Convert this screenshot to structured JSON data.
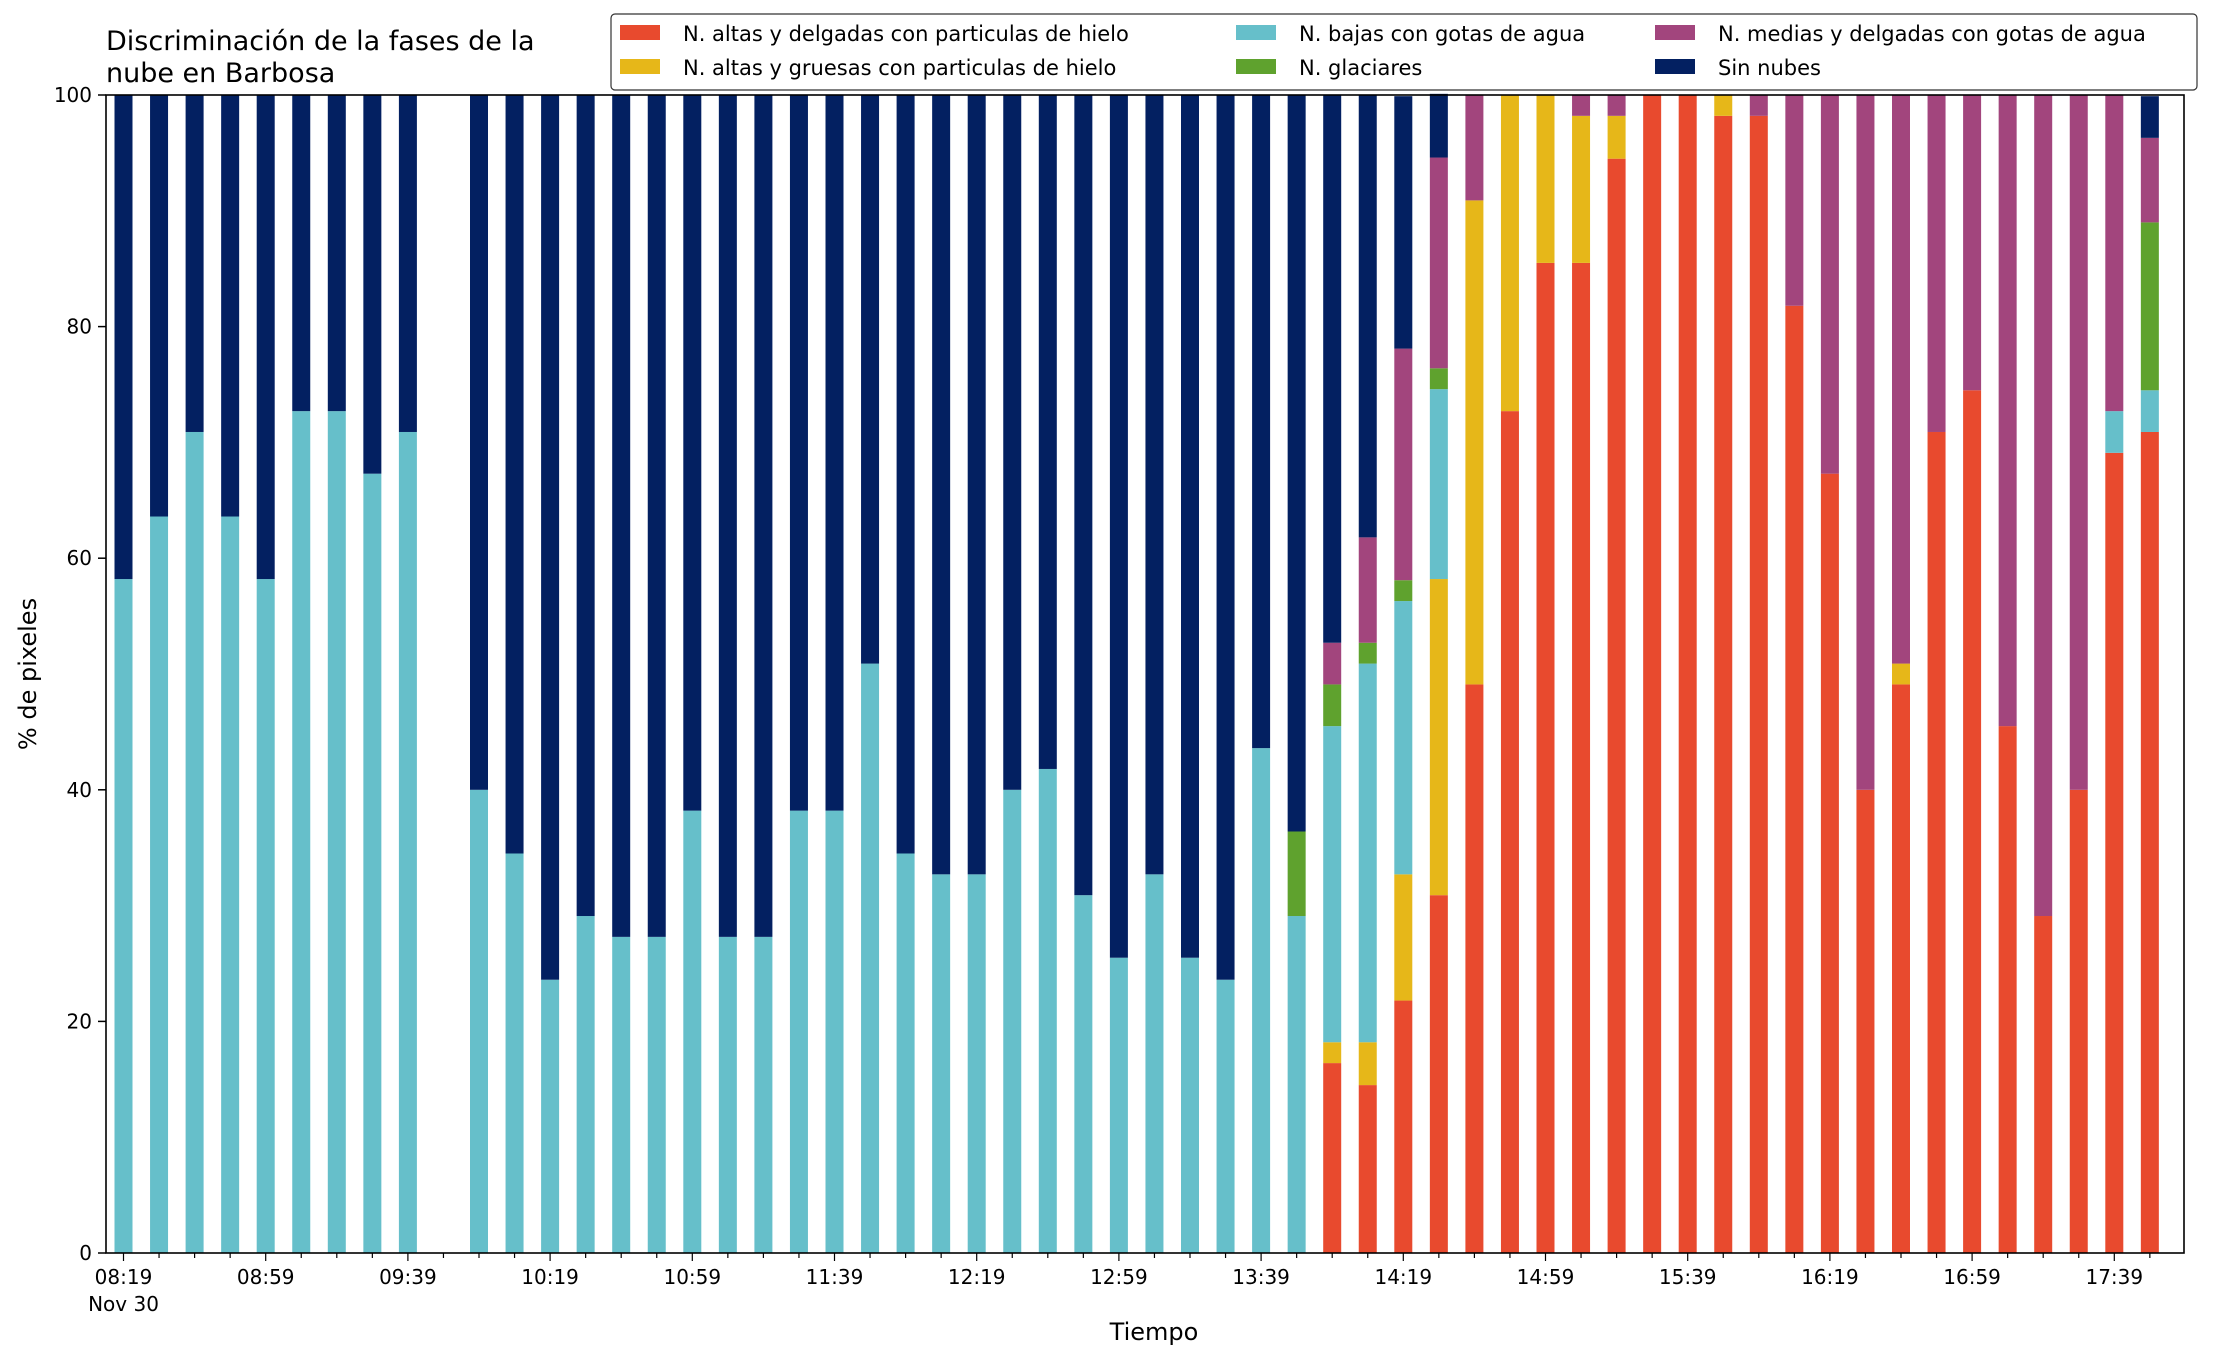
{
  "chart_data": {
    "type": "bar",
    "stacked": true,
    "title": "Discriminación de la fases de la\nnube en Barbosa",
    "xlabel": "Tiempo",
    "ylabel": "% de pixeles",
    "ylim": [
      0,
      100
    ],
    "yticks": [
      0,
      20,
      40,
      60,
      80,
      100
    ],
    "grid": false,
    "legend_position": "top-right",
    "legend_columns": 3,
    "x_start": "08:19",
    "x_step_minutes": 10,
    "x_tick_labels": [
      "08:19",
      "08:59",
      "09:39",
      "10:19",
      "10:59",
      "11:39",
      "12:19",
      "12:59",
      "13:39",
      "14:19",
      "14:59",
      "15:39",
      "16:19",
      "16:59",
      "17:39"
    ],
    "x_tick_sublabel": "Nov 30",
    "categories": [
      "08:19",
      "08:29",
      "08:39",
      "08:49",
      "08:59",
      "09:09",
      "09:19",
      "09:29",
      "09:39",
      "09:49",
      "09:59",
      "10:09",
      "10:19",
      "10:29",
      "10:39",
      "10:49",
      "10:59",
      "11:09",
      "11:19",
      "11:29",
      "11:39",
      "11:49",
      "11:59",
      "12:09",
      "12:19",
      "12:29",
      "12:39",
      "12:49",
      "12:59",
      "13:09",
      "13:19",
      "13:29",
      "13:39",
      "13:49",
      "13:59",
      "14:09",
      "14:19",
      "14:29",
      "14:39",
      "14:49",
      "14:59",
      "15:09",
      "15:19",
      "15:29",
      "15:39",
      "15:49",
      "15:59",
      "16:09",
      "16:19",
      "16:29",
      "16:39",
      "16:49",
      "16:59",
      "17:09",
      "17:19",
      "17:29",
      "17:39",
      "17:49"
    ],
    "series": [
      {
        "name": "N. altas y delgadas con particulas de hielo",
        "color": "#e84a2e",
        "values": [
          0,
          0,
          0,
          0,
          0,
          0,
          0,
          0,
          0,
          null,
          0,
          0,
          0,
          0,
          0,
          0,
          0,
          0,
          0,
          0,
          0,
          0,
          0,
          0,
          0,
          0,
          0,
          0,
          0,
          0,
          0,
          0,
          0,
          0,
          16.4,
          14.5,
          21.8,
          30.9,
          49.1,
          72.7,
          85.5,
          85.5,
          94.5,
          100,
          100,
          98.2,
          98.2,
          81.8,
          67.3,
          40,
          49.1,
          70.9,
          74.5,
          45.5,
          29.1,
          40,
          69.1,
          70.9
        ]
      },
      {
        "name": "N. altas y gruesas con particulas de hielo",
        "color": "#e6b719",
        "values": [
          0,
          0,
          0,
          0,
          0,
          0,
          0,
          0,
          0,
          null,
          0,
          0,
          0,
          0,
          0,
          0,
          0,
          0,
          0,
          0,
          0,
          0,
          0,
          0,
          0,
          0,
          0,
          0,
          0,
          0,
          0,
          0,
          0,
          0,
          1.8,
          3.7,
          10.9,
          27.3,
          41.8,
          27.3,
          14.5,
          12.7,
          3.7,
          0,
          0,
          1.8,
          0,
          0,
          0,
          0,
          1.8,
          0,
          0,
          0,
          0,
          0,
          0,
          0
        ]
      },
      {
        "name": "N. bajas con gotas de agua",
        "color": "#66bfca",
        "values": [
          58.2,
          63.6,
          70.9,
          63.6,
          58.2,
          72.7,
          72.7,
          67.3,
          70.9,
          null,
          40,
          34.5,
          23.6,
          29.1,
          27.3,
          27.3,
          38.2,
          27.3,
          27.3,
          38.2,
          38.2,
          50.9,
          34.5,
          32.7,
          32.7,
          40,
          41.8,
          30.9,
          25.5,
          32.7,
          25.5,
          23.6,
          43.6,
          29.1,
          27.3,
          32.7,
          23.6,
          16.4,
          0,
          0,
          0,
          0,
          0,
          0,
          0,
          0,
          0,
          0,
          0,
          0,
          0,
          0,
          0,
          0,
          0,
          0,
          3.6,
          3.6
        ]
      },
      {
        "name": "N. glaciares",
        "color": "#5fa22e",
        "values": [
          0,
          0,
          0,
          0,
          0,
          0,
          0,
          0,
          0,
          null,
          0,
          0,
          0,
          0,
          0,
          0,
          0,
          0,
          0,
          0,
          0,
          0,
          0,
          0,
          0,
          0,
          0,
          0,
          0,
          0,
          0,
          0,
          0,
          7.3,
          3.6,
          1.8,
          1.8,
          1.8,
          0,
          0,
          0,
          0,
          0,
          0,
          0,
          0,
          0,
          0,
          0,
          0,
          0,
          0,
          0,
          0,
          0,
          0,
          0,
          14.5
        ]
      },
      {
        "name": "N. medias y delgadas con gotas de agua",
        "color": "#a2457d",
        "values": [
          0,
          0,
          0,
          0,
          0,
          0,
          0,
          0,
          0,
          null,
          0,
          0,
          0,
          0,
          0,
          0,
          0,
          0,
          0,
          0,
          0,
          0,
          0,
          0,
          0,
          0,
          0,
          0,
          0,
          0,
          0,
          0,
          0,
          0,
          3.6,
          9.1,
          20,
          18.2,
          9.1,
          0,
          0,
          1.8,
          1.8,
          0,
          0,
          0,
          1.8,
          18.2,
          32.7,
          60,
          49.1,
          29.1,
          25.5,
          54.5,
          70.9,
          60,
          27.3,
          7.3
        ]
      },
      {
        "name": "Sin nubes",
        "color": "#032061",
        "values": [
          41.8,
          36.4,
          29.1,
          36.4,
          41.8,
          27.3,
          27.3,
          32.7,
          29.1,
          null,
          60,
          65.5,
          76.4,
          70.9,
          72.7,
          72.7,
          61.8,
          72.7,
          72.7,
          61.8,
          61.8,
          49.1,
          65.5,
          67.3,
          67.3,
          60,
          58.2,
          69.1,
          74.5,
          67.3,
          74.5,
          76.4,
          56.4,
          63.6,
          47.3,
          38.2,
          21.8,
          5.5,
          0,
          0,
          0,
          0,
          0,
          0,
          0,
          0,
          0,
          0,
          0,
          0,
          0,
          0,
          0,
          0,
          0,
          0,
          0,
          3.6
        ]
      }
    ]
  }
}
